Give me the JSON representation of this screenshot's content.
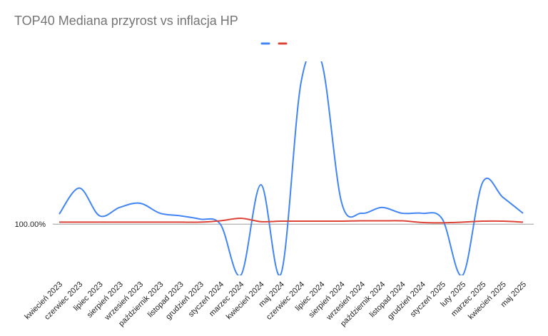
{
  "chart_data": {
    "type": "line",
    "title": "TOP40 Mediana przyrost vs inflacja HP",
    "xlabel": "",
    "ylabel": "",
    "legend_position": "top",
    "grid": false,
    "categories": [
      "kwiecień 2023",
      "czerwiec 2023",
      "lipiec 2023",
      "sierpień 2023",
      "wrzesień 2023",
      "październik 2023",
      "listopad 2023",
      "grudzień 2023",
      "styczeń 2024",
      "marzec 2024",
      "kwiecień 2024",
      "maj 2024",
      "czerwiec 2024",
      "lipiec 2024",
      "sierpień 2024",
      "wrzesień 2024",
      "październik 2024",
      "listopad 2024",
      "grudzień 2024",
      "styczeń 2025",
      "luty 2025",
      "marzec 2025",
      "kwiecień 2025",
      "maj 2025"
    ],
    "y_ticks": [
      {
        "value": 100,
        "label": "100.00%"
      }
    ],
    "ylim": [
      96.95,
      109.7
    ],
    "series": [
      {
        "name": "",
        "color": "#4285f4",
        "values": [
          100.6,
          102.15,
          100.5,
          101.0,
          101.25,
          100.65,
          100.5,
          100.3,
          99.98,
          96.95,
          102.35,
          97.05,
          108.5,
          109.7,
          101.3,
          100.65,
          101.0,
          100.65,
          100.65,
          100.3,
          96.95,
          102.5,
          101.6,
          100.65
        ]
      },
      {
        "name": "",
        "color": "#db4437",
        "values": [
          100.12,
          100.12,
          100.12,
          100.12,
          100.12,
          100.12,
          100.12,
          100.12,
          100.2,
          100.35,
          100.15,
          100.18,
          100.18,
          100.18,
          100.18,
          100.2,
          100.2,
          100.2,
          100.1,
          100.08,
          100.12,
          100.18,
          100.18,
          100.12
        ]
      }
    ]
  }
}
